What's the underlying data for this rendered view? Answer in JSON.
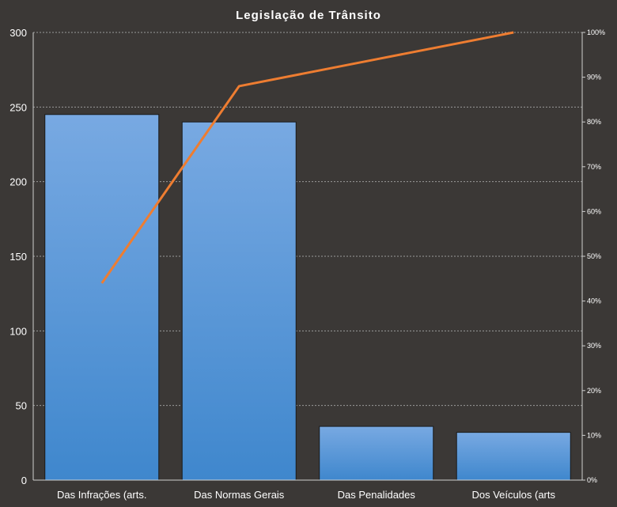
{
  "chart_data": {
    "type": "bar",
    "title": "Legislação de Trânsito",
    "categories": [
      "Das Infrações (arts.",
      "Das Normas Gerais",
      "Das Penalidades",
      "Dos Veículos (arts"
    ],
    "series": [
      {
        "type": "bar",
        "values": [
          245,
          240,
          36,
          32
        ],
        "color": "#5b9ee0"
      },
      {
        "type": "line",
        "axis": "right",
        "values": [
          44,
          88,
          94,
          100
        ],
        "color": "#ee7d31"
      }
    ],
    "ylim": [
      0,
      300
    ],
    "yticks": [
      "0",
      "50",
      "100",
      "150",
      "200",
      "250",
      "300"
    ],
    "y2lim": [
      0,
      100
    ],
    "y2ticks": [
      "0%",
      "10%",
      "20%",
      "30%",
      "40%",
      "50%",
      "60%",
      "70%",
      "80%",
      "90%",
      "100%"
    ],
    "grid": true,
    "legend": "none"
  },
  "colors": {
    "background": "#3b3836",
    "bar_top": "#78a9e2",
    "bar_bottom": "#3f87cd",
    "line": "#ee7d31",
    "text": "#ffffff"
  }
}
